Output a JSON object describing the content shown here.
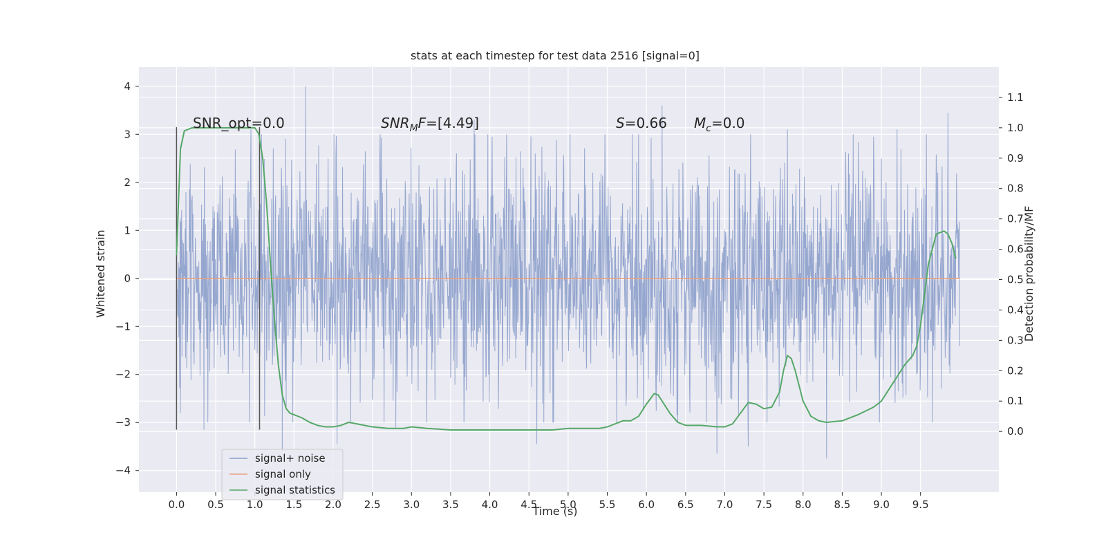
{
  "chart_data": {
    "type": "line",
    "title": "stats at each timestep for test data 2516 [signal=0]",
    "xlabel": "Time (s)",
    "ylabel_left": "Whitened strain",
    "ylabel_right": "Detection probability/MF",
    "xlim": [
      -0.48,
      10.5
    ],
    "ylim_left": [
      -4.45,
      4.4
    ],
    "ylim_right": [
      -0.2,
      1.2
    ],
    "x_ticks": [
      "0.0",
      "0.5",
      "1.0",
      "1.5",
      "2.0",
      "2.5",
      "3.0",
      "3.5",
      "4.0",
      "4.5",
      "5.0",
      "5.5",
      "6.0",
      "6.5",
      "7.0",
      "7.5",
      "8.0",
      "8.5",
      "9.0",
      "9.5"
    ],
    "y_left_ticks": [
      "4",
      "3",
      "2",
      "1",
      "0",
      "−1",
      "−2",
      "−3",
      "−4"
    ],
    "y_right_ticks": [
      "1.1",
      "1.0",
      "0.9",
      "0.8",
      "0.7",
      "0.6",
      "0.5",
      "0.4",
      "0.3",
      "0.2",
      "0.1",
      "0.0"
    ],
    "grid": true,
    "background": "#eaeaf2",
    "legend_position": "lower-left",
    "series": [
      {
        "name": "signal+ noise",
        "axis": "left",
        "color": "#8da0cb",
        "description": "whitened strain noise, dense band mostly within ±1.3 with spikes to about ±3",
        "band": [
          -1.3,
          1.3
        ],
        "x_range": [
          0.0,
          10.0
        ],
        "notable_peaks": [
          [
            0.0,
            2.5
          ],
          [
            0.35,
            2.4
          ],
          [
            0.95,
            3.1
          ],
          [
            1.65,
            4.0
          ],
          [
            2.6,
            3.0
          ],
          [
            3.8,
            3.3
          ],
          [
            5.9,
            3.0
          ],
          [
            6.2,
            3.6
          ],
          [
            7.8,
            3.1
          ],
          [
            9.2,
            3.1
          ],
          [
            9.85,
            3.45
          ]
        ],
        "notable_troughs": [
          [
            0.05,
            -2.8
          ],
          [
            0.35,
            -3.15
          ],
          [
            1.35,
            -3.6
          ],
          [
            2.05,
            -3.45
          ],
          [
            2.8,
            -3.1
          ],
          [
            4.6,
            -3.45
          ],
          [
            6.9,
            -3.65
          ],
          [
            7.3,
            -3.5
          ],
          [
            8.3,
            -3.75
          ],
          [
            9.65,
            -3.0
          ]
        ]
      },
      {
        "name": "signal only",
        "axis": "left",
        "color": "#e9a07f",
        "x": [
          0.0,
          10.0
        ],
        "y": [
          0.0,
          0.0
        ]
      },
      {
        "name": "signal statistics",
        "axis": "right",
        "color": "#55a868",
        "x": [
          0.0,
          0.05,
          0.1,
          0.2,
          0.3,
          0.5,
          0.7,
          0.9,
          1.0,
          1.05,
          1.1,
          1.15,
          1.2,
          1.25,
          1.3,
          1.35,
          1.4,
          1.45,
          1.5,
          1.6,
          1.7,
          1.8,
          1.9,
          2.0,
          2.1,
          2.2,
          2.3,
          2.4,
          2.5,
          2.7,
          2.9,
          3.0,
          3.2,
          3.5,
          3.8,
          4.0,
          4.3,
          4.6,
          4.8,
          5.0,
          5.2,
          5.4,
          5.5,
          5.6,
          5.7,
          5.8,
          5.9,
          6.0,
          6.1,
          6.15,
          6.2,
          6.3,
          6.4,
          6.5,
          6.7,
          6.9,
          7.0,
          7.1,
          7.2,
          7.3,
          7.4,
          7.5,
          7.6,
          7.7,
          7.75,
          7.8,
          7.85,
          7.9,
          8.0,
          8.1,
          8.2,
          8.3,
          8.5,
          8.7,
          8.9,
          9.0,
          9.2,
          9.3,
          9.4,
          9.45,
          9.5,
          9.55,
          9.6,
          9.7,
          9.8,
          9.85,
          9.9,
          9.95
        ],
        "y": [
          0.58,
          0.93,
          0.99,
          1.0,
          1.0,
          1.0,
          1.0,
          1.0,
          1.0,
          0.98,
          0.9,
          0.75,
          0.55,
          0.37,
          0.22,
          0.12,
          0.075,
          0.06,
          0.055,
          0.045,
          0.03,
          0.02,
          0.015,
          0.015,
          0.02,
          0.03,
          0.025,
          0.02,
          0.015,
          0.01,
          0.01,
          0.015,
          0.01,
          0.005,
          0.005,
          0.005,
          0.005,
          0.005,
          0.005,
          0.01,
          0.01,
          0.01,
          0.015,
          0.025,
          0.035,
          0.035,
          0.05,
          0.09,
          0.125,
          0.12,
          0.1,
          0.06,
          0.03,
          0.02,
          0.02,
          0.015,
          0.015,
          0.025,
          0.06,
          0.095,
          0.09,
          0.075,
          0.08,
          0.13,
          0.2,
          0.25,
          0.24,
          0.2,
          0.1,
          0.05,
          0.035,
          0.03,
          0.035,
          0.055,
          0.08,
          0.1,
          0.18,
          0.22,
          0.25,
          0.28,
          0.35,
          0.45,
          0.55,
          0.65,
          0.66,
          0.65,
          0.62,
          0.57
        ]
      }
    ],
    "vlines": [
      {
        "x": 0.0,
        "ymin": -3.15,
        "ymax": 3.15,
        "color": "#555555"
      },
      {
        "x": 1.06,
        "ymin": -3.15,
        "ymax": 3.15,
        "color": "#555555"
      }
    ],
    "annotations": {
      "snr_opt": {
        "prefix": "SNR_opt=",
        "value": "0.0"
      },
      "snr_mf": {
        "base": "SNR",
        "sub": "M",
        "suffix": "F",
        "value": "=[4.49]"
      },
      "s_stat": {
        "symbol": "S",
        "value": "=0.66"
      },
      "mc": {
        "symbol": "M",
        "sub": "c",
        "value": "=0.0"
      }
    }
  }
}
